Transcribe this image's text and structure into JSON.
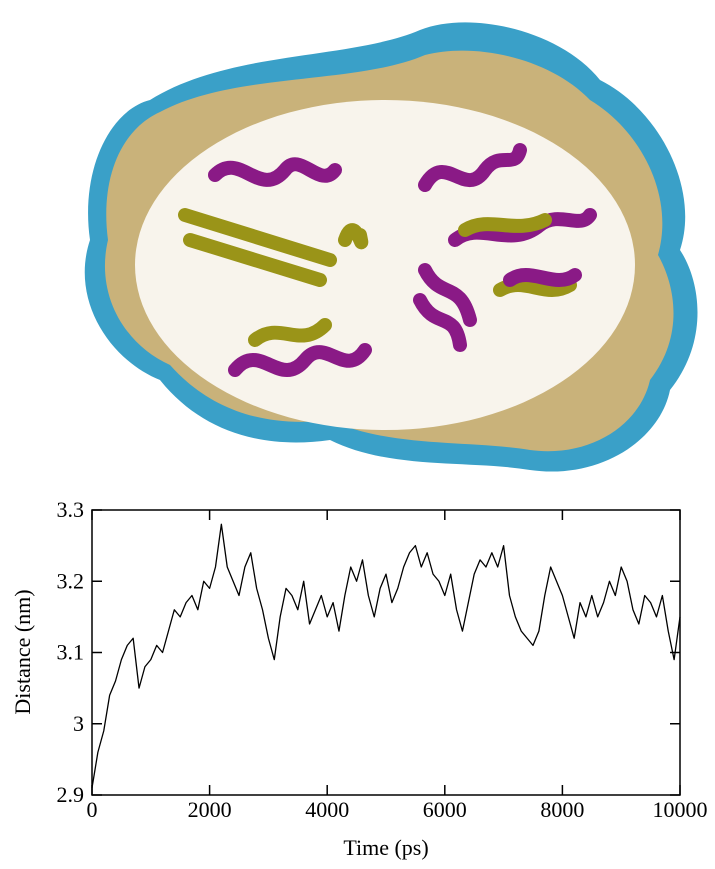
{
  "chart_data": {
    "type": "line",
    "xlabel": "Time (ps)",
    "ylabel": "Distance (nm)",
    "x": [
      0,
      100,
      200,
      300,
      400,
      500,
      600,
      700,
      800,
      900,
      1000,
      1100,
      1200,
      1300,
      1400,
      1500,
      1600,
      1700,
      1800,
      1900,
      2000,
      2100,
      2200,
      2300,
      2400,
      2500,
      2600,
      2700,
      2800,
      2900,
      3000,
      3100,
      3200,
      3300,
      3400,
      3500,
      3600,
      3700,
      3800,
      3900,
      4000,
      4100,
      4200,
      4300,
      4400,
      4500,
      4600,
      4700,
      4800,
      4900,
      5000,
      5100,
      5200,
      5300,
      5400,
      5500,
      5600,
      5700,
      5800,
      5900,
      6000,
      6100,
      6200,
      6300,
      6400,
      6500,
      6600,
      6700,
      6800,
      6900,
      7000,
      7100,
      7200,
      7300,
      7400,
      7500,
      7600,
      7700,
      7800,
      7900,
      8000,
      8100,
      8200,
      8300,
      8400,
      8500,
      8600,
      8700,
      8800,
      8900,
      9000,
      9100,
      9200,
      9300,
      9400,
      9500,
      9600,
      9700,
      9800,
      9900,
      10000
    ],
    "series": [
      {
        "color": "#000000",
        "values": [
          2.91,
          2.96,
          2.99,
          3.04,
          3.06,
          3.09,
          3.11,
          3.12,
          3.05,
          3.08,
          3.09,
          3.11,
          3.1,
          3.13,
          3.16,
          3.15,
          3.17,
          3.18,
          3.16,
          3.2,
          3.19,
          3.22,
          3.28,
          3.22,
          3.2,
          3.18,
          3.22,
          3.24,
          3.19,
          3.16,
          3.12,
          3.09,
          3.15,
          3.19,
          3.18,
          3.16,
          3.2,
          3.14,
          3.16,
          3.18,
          3.15,
          3.17,
          3.13,
          3.18,
          3.22,
          3.2,
          3.23,
          3.18,
          3.15,
          3.19,
          3.21,
          3.17,
          3.19,
          3.22,
          3.24,
          3.25,
          3.22,
          3.24,
          3.21,
          3.2,
          3.18,
          3.21,
          3.16,
          3.13,
          3.17,
          3.21,
          3.23,
          3.22,
          3.24,
          3.22,
          3.25,
          3.18,
          3.15,
          3.13,
          3.12,
          3.11,
          3.13,
          3.18,
          3.22,
          3.2,
          3.18,
          3.15,
          3.12,
          3.17,
          3.15,
          3.18,
          3.15,
          3.17,
          3.2,
          3.18,
          3.22,
          3.2,
          3.16,
          3.14,
          3.18,
          3.17,
          3.15,
          3.18,
          3.13,
          3.09,
          3.15
        ]
      }
    ],
    "xlim": [
      0,
      10000
    ],
    "xticks": [
      0,
      2000,
      4000,
      6000,
      8000,
      10000
    ],
    "ylim": [
      2.9,
      3.3
    ],
    "yticks": [
      2.9,
      3,
      3.1,
      3.2,
      3.3
    ]
  }
}
